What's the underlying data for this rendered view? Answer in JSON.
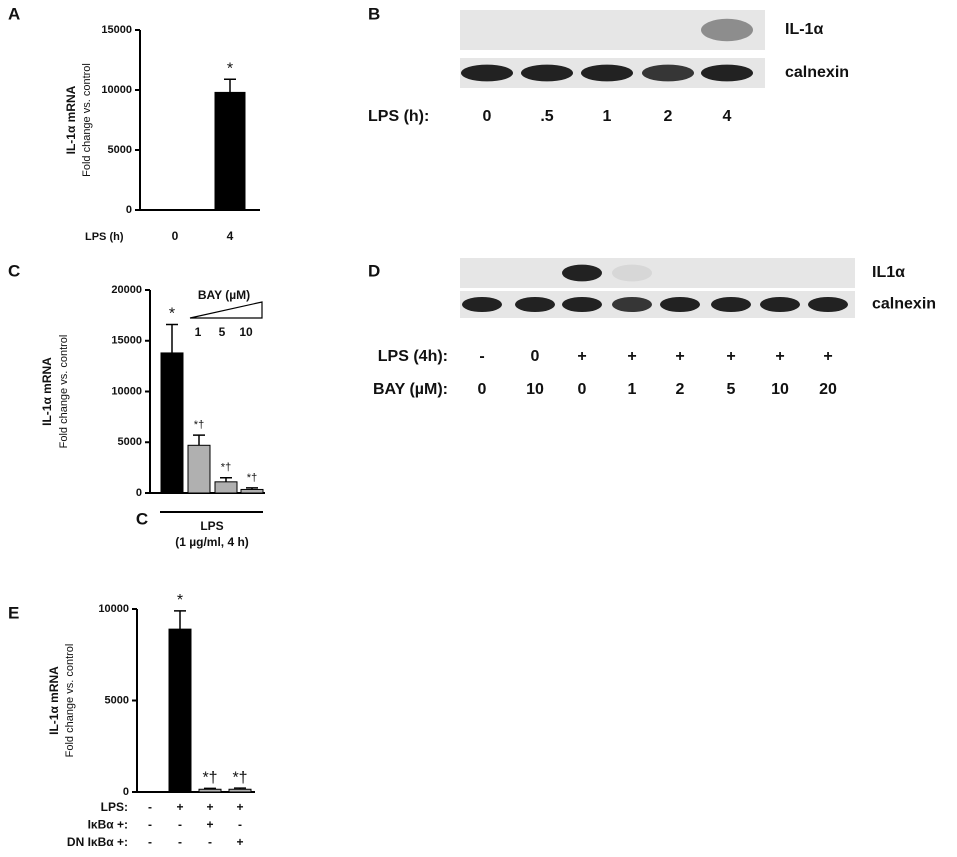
{
  "panel_labels": [
    "A",
    "B",
    "C",
    "D",
    "E"
  ],
  "chart_data": [
    {
      "type": "bar",
      "ylabel": [
        "IL-1α mRNA",
        "Fold change vs. control"
      ],
      "row_label": "LPS (h)",
      "categories": [
        "0",
        "4"
      ],
      "values": [
        0,
        9800
      ],
      "errors": [
        null,
        1100
      ],
      "colors": [
        "#000000",
        "#000000"
      ],
      "annotations": [
        null,
        "*"
      ],
      "ylim": [
        0,
        15000
      ],
      "yticks": [
        0,
        5000,
        10000,
        15000
      ]
    },
    {
      "type": "bar",
      "ylabel": [
        "IL-1α mRNA",
        "Fold change vs. control"
      ],
      "categories": [
        "C",
        null,
        null,
        null,
        null
      ],
      "values": [
        0,
        13800,
        4700,
        1100,
        350
      ],
      "errors": [
        null,
        2800,
        1000,
        400,
        150
      ],
      "colors": [
        "#000000",
        "#000000",
        "#b0b0b0",
        "#b0b0b0",
        "#b0b0b0"
      ],
      "annotations": [
        null,
        "*",
        "*†",
        "*†",
        "*†"
      ],
      "bracket_label": [
        "LPS",
        "(1 µg/ml, 4 h)"
      ],
      "inset_title": "BAY (µM)",
      "inset_ticks": [
        "1",
        "5",
        "10"
      ],
      "ylim": [
        0,
        20000
      ],
      "yticks": [
        0,
        5000,
        10000,
        15000,
        20000
      ]
    },
    {
      "type": "bar",
      "ylabel": [
        "IL-1α mRNA",
        "Fold change vs. control"
      ],
      "categories": [
        null,
        null,
        null,
        null
      ],
      "values": [
        0,
        8900,
        150,
        150
      ],
      "errors": [
        null,
        1000,
        50,
        60
      ],
      "colors": [
        "#000000",
        "#000000",
        "#b0b0b0",
        "#b0b0b0"
      ],
      "annotations": [
        null,
        "*",
        "*†",
        "*†"
      ],
      "rows": [
        {
          "label": "LPS:",
          "cells": [
            "-",
            "+",
            "+",
            "+"
          ]
        },
        {
          "label": "IκBα +:",
          "cells": [
            "-",
            "-",
            "+",
            "-"
          ]
        },
        {
          "label": "DN IκBα +:",
          "cells": [
            "-",
            "-",
            "-",
            "+"
          ]
        }
      ],
      "ylim": [
        0,
        10000
      ],
      "yticks": [
        0,
        5000,
        10000
      ]
    }
  ],
  "blots": [
    {
      "bands": [
        "IL-1α",
        "calnexin"
      ],
      "rows": [
        {
          "label": "LPS (h):",
          "cells": [
            "0",
            ".5",
            "1",
            "2",
            "4"
          ]
        }
      ]
    },
    {
      "bands": [
        "IL1α",
        "calnexin"
      ],
      "rows": [
        {
          "label": "LPS (4h):",
          "cells": [
            "-",
            "0",
            "+",
            "+",
            "+",
            "+",
            "+",
            "+"
          ]
        },
        {
          "label": "BAY (µM):",
          "cells": [
            "0",
            "10",
            "0",
            "1",
            "2",
            "5",
            "10",
            "20"
          ]
        }
      ]
    }
  ]
}
